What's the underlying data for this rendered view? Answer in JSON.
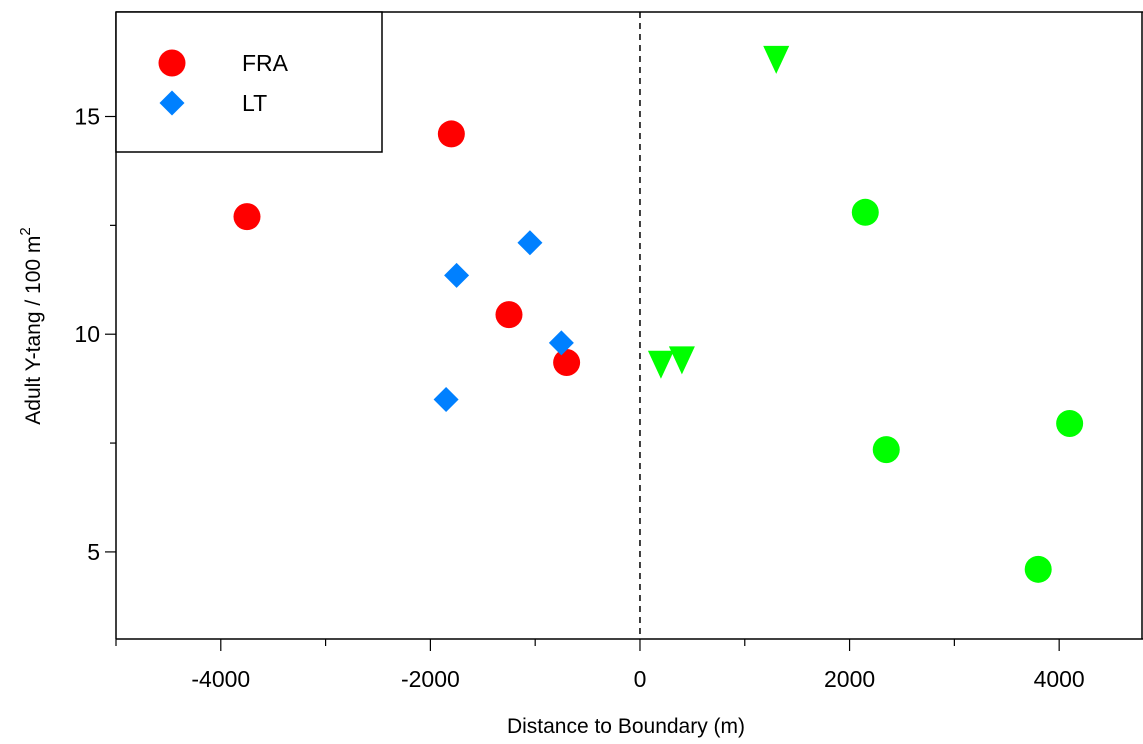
{
  "chart_data": {
    "type": "scatter",
    "title": "",
    "xlabel": "Distance to Boundary (m)",
    "ylabel": "Adult Y-tang / 100 m",
    "ylabel_superscript": "2",
    "xlim": [
      -5000,
      4800
    ],
    "ylim": [
      3,
      17.4
    ],
    "xticks": [
      -4000,
      -2000,
      0,
      2000,
      4000
    ],
    "xtick_labels": [
      "-4000",
      "-2000",
      "0",
      "2000",
      "4000"
    ],
    "xticks_minor": [
      -5000,
      -3000,
      -1000,
      1000,
      3000
    ],
    "yticks": [
      5,
      10,
      15
    ],
    "ytick_labels": [
      "5",
      "10",
      "15"
    ],
    "yticks_minor": [
      7.5,
      12.5
    ],
    "reference_line": {
      "x": 0,
      "style": "dashed"
    },
    "legend": {
      "placement": "top-left",
      "entries": [
        {
          "label": "FRA",
          "marker": "circle",
          "color": "#ff0000"
        },
        {
          "label": "LT",
          "marker": "diamond",
          "color": "#0080ff"
        }
      ]
    },
    "series": [
      {
        "name": "FRA",
        "marker": "circle",
        "color": "#ff0000",
        "points": [
          {
            "x": -3750,
            "y": 12.7
          },
          {
            "x": -1800,
            "y": 14.6
          },
          {
            "x": -1250,
            "y": 10.45
          },
          {
            "x": -700,
            "y": 9.35
          }
        ]
      },
      {
        "name": "LT",
        "marker": "diamond",
        "color": "#0080ff",
        "points": [
          {
            "x": -1850,
            "y": 8.5
          },
          {
            "x": -1750,
            "y": 11.35
          },
          {
            "x": -1050,
            "y": 12.1
          },
          {
            "x": -750,
            "y": 9.8
          }
        ]
      },
      {
        "marker": "circle",
        "color": "#00ff00",
        "points": [
          {
            "x": 2150,
            "y": 12.8
          },
          {
            "x": 2350,
            "y": 7.35
          },
          {
            "x": 3800,
            "y": 4.6
          },
          {
            "x": 4100,
            "y": 7.95
          }
        ]
      },
      {
        "marker": "triangle-down",
        "color": "#00ff00",
        "points": [
          {
            "x": 200,
            "y": 9.3
          },
          {
            "x": 400,
            "y": 9.4
          },
          {
            "x": 1300,
            "y": 16.3
          }
        ]
      }
    ]
  }
}
